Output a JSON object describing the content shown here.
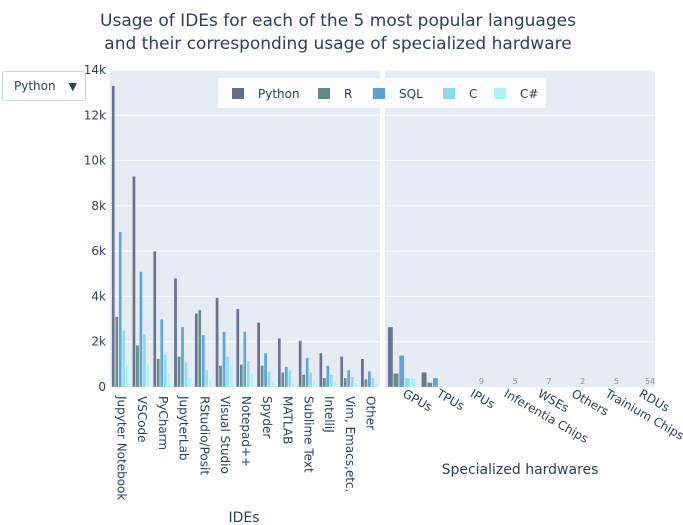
{
  "dropdown": {
    "selected": "Python",
    "arrow_icon": "triangle-down-icon"
  },
  "colors": {
    "plot_bg": "#e5ecf6",
    "grid": "#ffffff",
    "text": "#2a3f5f",
    "series": [
      "#636e8c",
      "#5f8a86",
      "#5aa1d6",
      "#8ed8ee",
      "#aaf3fa"
    ]
  },
  "chart_data": {
    "type": "bar",
    "title": "Usage of IDEs for each of the 5 most popular languages\nand their corresponding usage of specialized hardware",
    "legend_position": "top",
    "legend": [
      "Python",
      "R",
      "SQL",
      "C",
      "C#"
    ],
    "yaxis": {
      "ticks": [
        0,
        2000,
        4000,
        6000,
        8000,
        10000,
        12000,
        14000
      ],
      "tick_labels": [
        "0",
        "2k",
        "4k",
        "6k",
        "8k",
        "10k",
        "12k",
        "14k"
      ],
      "ylim": [
        0,
        14000
      ]
    },
    "panels": [
      {
        "xlabel": "IDEs",
        "categories": [
          "Jupyter Notebook",
          "VSCode",
          "PyCharm",
          "JupyterLab",
          "RStudio/Posit",
          "Visual Studio",
          "Notepad++",
          "Spyder",
          "MATLAB",
          "Sublime Text",
          "IntelliJ",
          "Vim, Emacs,etc.",
          "Other"
        ],
        "series": [
          {
            "name": "Python",
            "values": [
              13300,
              9300,
              6000,
              4800,
              3250,
              3950,
              3450,
              2850,
              2150,
              2050,
              1500,
              1350,
              1250
            ]
          },
          {
            "name": "R",
            "values": [
              3100,
              1850,
              1250,
              1350,
              3400,
              950,
              1000,
              950,
              650,
              550,
              400,
              400,
              350
            ]
          },
          {
            "name": "SQL",
            "values": [
              6850,
              5100,
              3000,
              2650,
              2300,
              2450,
              2450,
              1500,
              900,
              1300,
              950,
              750,
              700
            ]
          },
          {
            "name": "C",
            "values": [
              2500,
              2350,
              1450,
              1100,
              750,
              1350,
              1150,
              700,
              750,
              650,
              550,
              450,
              400
            ]
          },
          {
            "name": "C#",
            "values": [
              1000,
              1050,
              600,
              450,
              350,
              1000,
              600,
              250,
              200,
              300,
              250,
              200,
              150
            ]
          }
        ]
      },
      {
        "xlabel": "Specialized hardwares",
        "categories": [
          "GPUs",
          "TPUs",
          "IPUs",
          "Inferentia Chips",
          "WSEs",
          "Others",
          "Trainium Chips",
          "RDUs"
        ],
        "series": [
          {
            "name": "Python",
            "values": [
              2650,
              650,
              0,
              0,
              0,
              0,
              0,
              0
            ]
          },
          {
            "name": "R",
            "values": [
              600,
              200,
              0,
              0,
              0,
              0,
              0,
              0
            ]
          },
          {
            "name": "SQL",
            "values": [
              1400,
              400,
              0,
              0,
              0,
              0,
              0,
              0
            ]
          },
          {
            "name": "C",
            "values": [
              400,
              0,
              0,
              0,
              0,
              0,
              0,
              0
            ]
          },
          {
            "name": "C#",
            "values": [
              400,
              0,
              0,
              0,
              0,
              0,
              0,
              0
            ]
          }
        ],
        "data_labels": [
          "",
          "",
          "9",
          "5",
          "7",
          "2",
          "5",
          "54"
        ]
      }
    ]
  }
}
